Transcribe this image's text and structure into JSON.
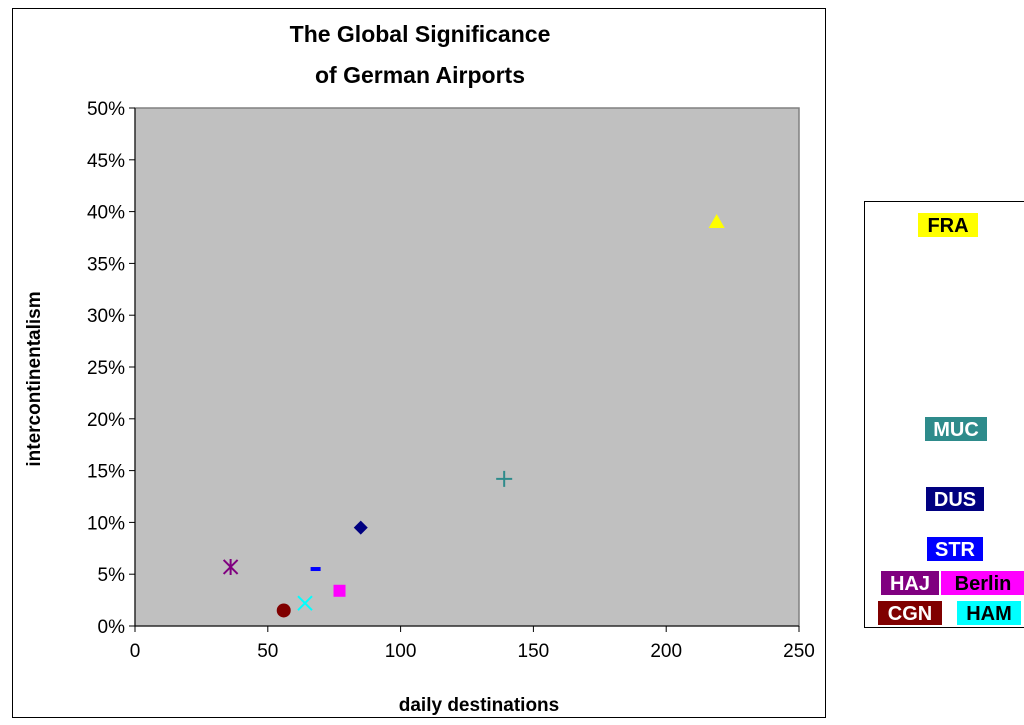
{
  "chart_data": {
    "type": "scatter",
    "title": [
      "The Global Significance",
      "of German Airports"
    ],
    "xlabel": "daily destinations",
    "ylabel": "intercontinentalism",
    "xlim": [
      0,
      250
    ],
    "ylim": [
      0,
      0.5
    ],
    "x_ticks": [
      "0",
      "50",
      "100",
      "150",
      "200",
      "250"
    ],
    "y_ticks": [
      "0%",
      "5%",
      "10%",
      "15%",
      "20%",
      "25%",
      "30%",
      "35%",
      "40%",
      "45%",
      "50%"
    ],
    "grid": false,
    "plot_background": "#c0c0c0",
    "series": [
      {
        "name": "FRA",
        "x": 219,
        "y": 0.39,
        "marker": "triangle",
        "color": "#ffff00",
        "text_color": "#000000"
      },
      {
        "name": "MUC",
        "x": 139,
        "y": 0.142,
        "marker": "plus",
        "color": "#2e8b8b",
        "text_color": "#ffffff"
      },
      {
        "name": "DUS",
        "x": 85,
        "y": 0.095,
        "marker": "diamond",
        "color": "#000080",
        "text_color": "#ffffff"
      },
      {
        "name": "STR",
        "x": 68,
        "y": 0.055,
        "marker": "dash",
        "color": "#0000ff",
        "text_color": "#ffffff"
      },
      {
        "name": "HAJ",
        "x": 36,
        "y": 0.057,
        "marker": "asterisk",
        "color": "#800080",
        "text_color": "#ffffff"
      },
      {
        "name": "Berlin",
        "x": 77,
        "y": 0.034,
        "marker": "square",
        "color": "#ff00ff",
        "text_color": "#000000"
      },
      {
        "name": "CGN",
        "x": 56,
        "y": 0.015,
        "marker": "circle",
        "color": "#800000",
        "text_color": "#ffffff"
      },
      {
        "name": "HAM",
        "x": 64,
        "y": 0.022,
        "marker": "x",
        "color": "#00ffff",
        "text_color": "#000000"
      }
    ]
  }
}
